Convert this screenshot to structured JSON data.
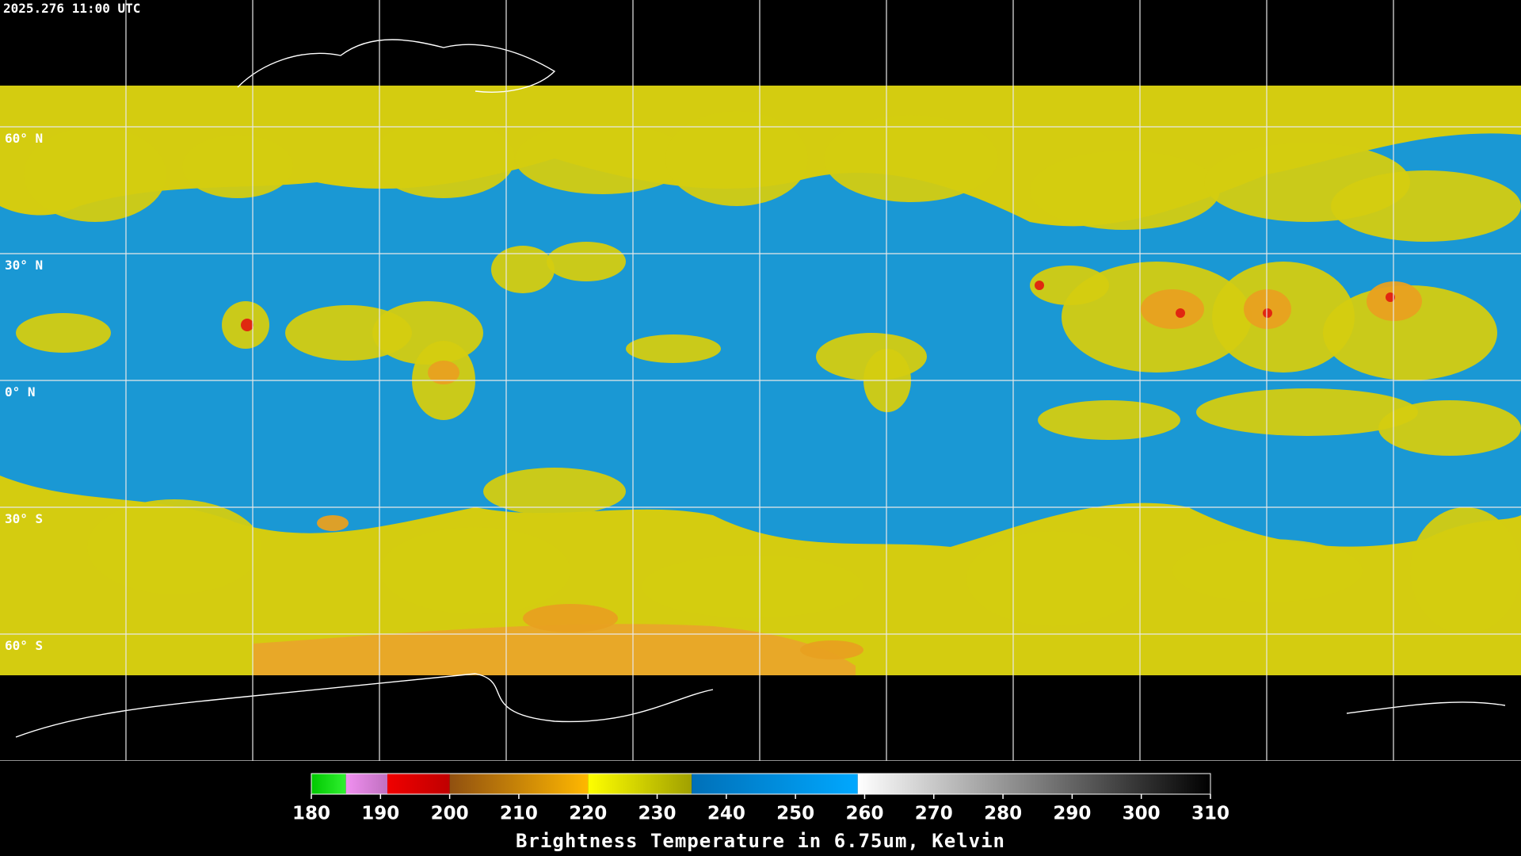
{
  "header": {
    "timestamp": "2025.276 11:00 UTC"
  },
  "map": {
    "latitude_labels": [
      "60° N",
      "30° N",
      "0° N",
      "30° S",
      "60° S"
    ]
  },
  "colorbar": {
    "title": "Brightness Temperature in 6.75um, Kelvin",
    "lim": [
      180,
      310
    ],
    "ticks": [
      180,
      190,
      200,
      210,
      220,
      230,
      240,
      250,
      260,
      270,
      280,
      290,
      300,
      310
    ],
    "segments": [
      {
        "from": 180,
        "to": 185,
        "colors": [
          "#00c800",
          "#30f030"
        ]
      },
      {
        "from": 185,
        "to": 191,
        "colors": [
          "#f090f0",
          "#c070c0"
        ]
      },
      {
        "from": 191,
        "to": 200,
        "colors": [
          "#f00000",
          "#c00000"
        ]
      },
      {
        "from": 200,
        "to": 220,
        "colors": [
          "#905010",
          "#ffb800"
        ]
      },
      {
        "from": 220,
        "to": 235,
        "colors": [
          "#ffff00",
          "#a0a000"
        ]
      },
      {
        "from": 235,
        "to": 259,
        "colors": [
          "#0070b8",
          "#00a8ff"
        ]
      },
      {
        "from": 259,
        "to": 310,
        "colors": [
          "#ffffff",
          "#000000"
        ]
      }
    ]
  }
}
